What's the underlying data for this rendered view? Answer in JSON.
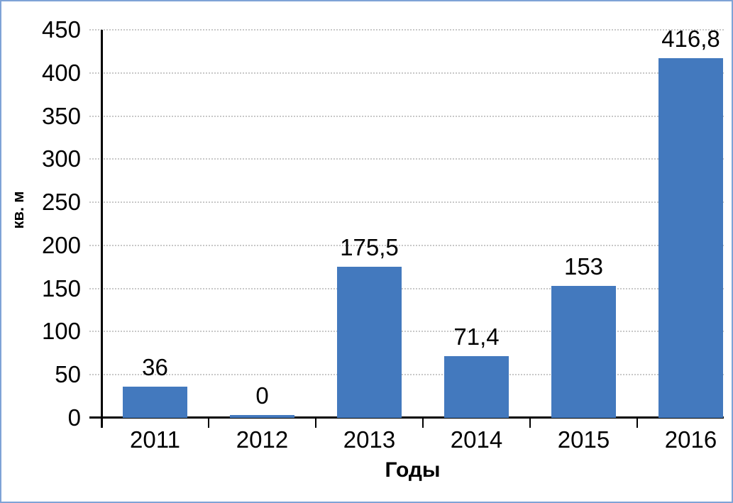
{
  "chart_data": {
    "type": "bar",
    "categories": [
      "2011",
      "2012",
      "2013",
      "2014",
      "2015",
      "2016"
    ],
    "values": [
      36,
      0,
      175.5,
      71.4,
      153,
      416.8
    ],
    "value_labels": [
      "36",
      "0",
      "175,5",
      "71,4",
      "153",
      "416,8"
    ],
    "title": "",
    "xlabel": "Годы",
    "ylabel": "кв. м",
    "ylim": [
      0,
      450
    ],
    "ytick_step": 50,
    "yticks": [
      0,
      50,
      100,
      150,
      200,
      250,
      300,
      350,
      400,
      450
    ],
    "grid": "horizontal-dotted",
    "legend": "none",
    "colors": {
      "bar": "#4379BE",
      "frame_border": "#7FA3D6",
      "gridline": "#C8C8C8",
      "axis": "#000000",
      "text": "#000000",
      "background": "#FFFFFF"
    }
  }
}
